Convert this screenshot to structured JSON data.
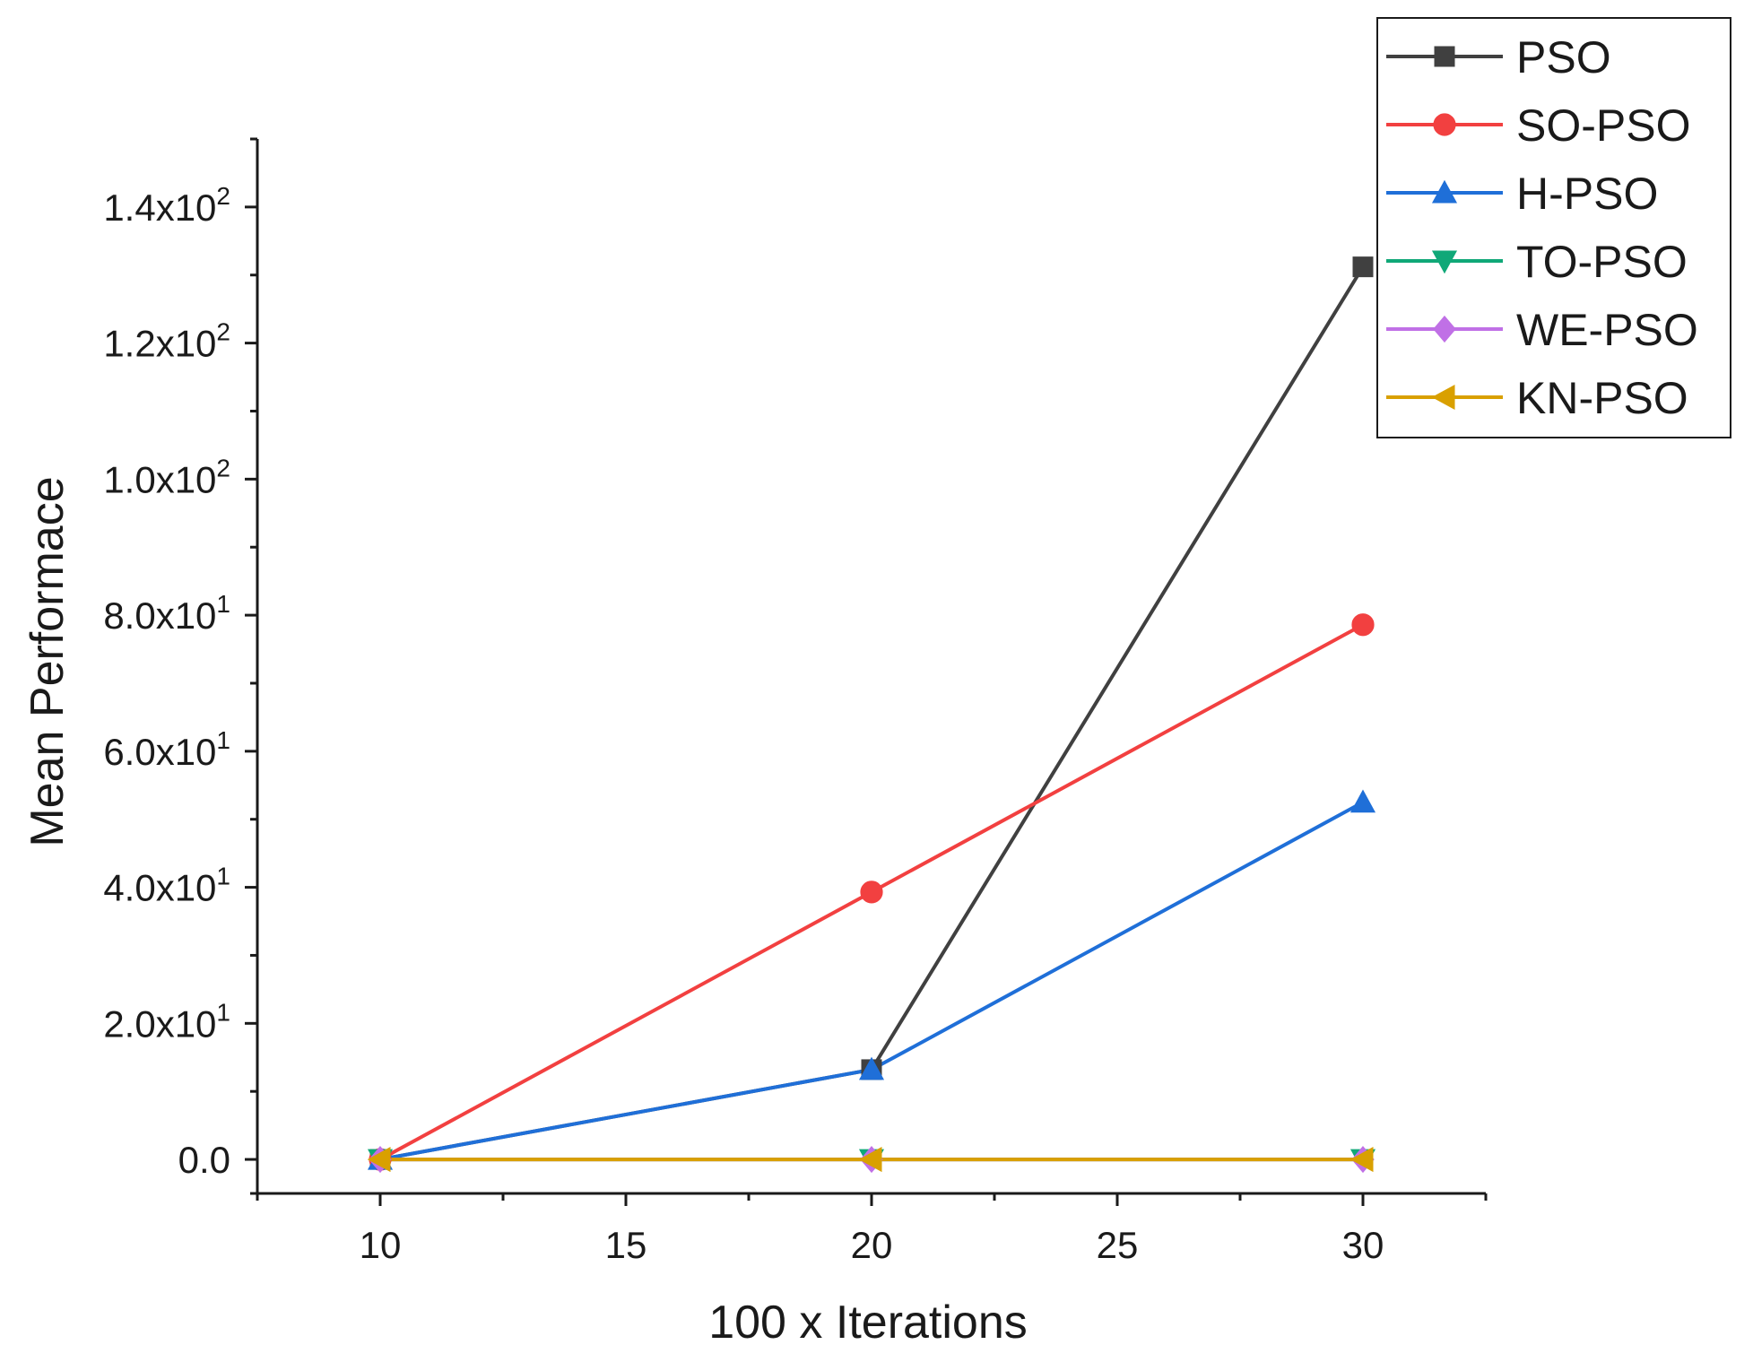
{
  "chart_data": {
    "type": "line",
    "title": "",
    "xlabel": "100 x Iterations",
    "ylabel": "Mean Performace",
    "x": [
      10,
      20,
      30
    ],
    "xlim": [
      7.5,
      32.5
    ],
    "ylim": [
      -5,
      150
    ],
    "xticks": [
      10,
      15,
      20,
      25,
      30
    ],
    "xtick_labels": [
      "10",
      "15",
      "20",
      "25",
      "30"
    ],
    "yticks": [
      {
        "value": 0,
        "mantissa": "0.0",
        "exponent": ""
      },
      {
        "value": 20,
        "mantissa": "2.0x10",
        "exponent": "1"
      },
      {
        "value": 40,
        "mantissa": "4.0x10",
        "exponent": "1"
      },
      {
        "value": 60,
        "mantissa": "6.0x10",
        "exponent": "1"
      },
      {
        "value": 80,
        "mantissa": "8.0x10",
        "exponent": "1"
      },
      {
        "value": 100,
        "mantissa": "1.0x10",
        "exponent": "2"
      },
      {
        "value": 120,
        "mantissa": "1.2x10",
        "exponent": "2"
      },
      {
        "value": 140,
        "mantissa": "1.4x10",
        "exponent": "2"
      }
    ],
    "grid": false,
    "legend_position": "top-right",
    "series": [
      {
        "name": "PSO",
        "color": "#404040",
        "marker": "square",
        "values": [
          0,
          13.2,
          131.2
        ]
      },
      {
        "name": "SO-PSO",
        "color": "#f24040",
        "marker": "circle",
        "values": [
          0,
          39.3,
          78.6
        ]
      },
      {
        "name": "H-PSO",
        "color": "#1f6fd8",
        "marker": "triangle-up",
        "values": [
          0,
          13.2,
          52.5
        ]
      },
      {
        "name": "TO-PSO",
        "color": "#10a878",
        "marker": "triangle-down",
        "values": [
          0,
          0,
          0
        ]
      },
      {
        "name": "WE-PSO",
        "color": "#c070e6",
        "marker": "diamond",
        "values": [
          0,
          0,
          0
        ]
      },
      {
        "name": "KN-PSO",
        "color": "#d9a000",
        "marker": "triangle-left",
        "values": [
          0,
          0,
          0
        ]
      }
    ]
  }
}
